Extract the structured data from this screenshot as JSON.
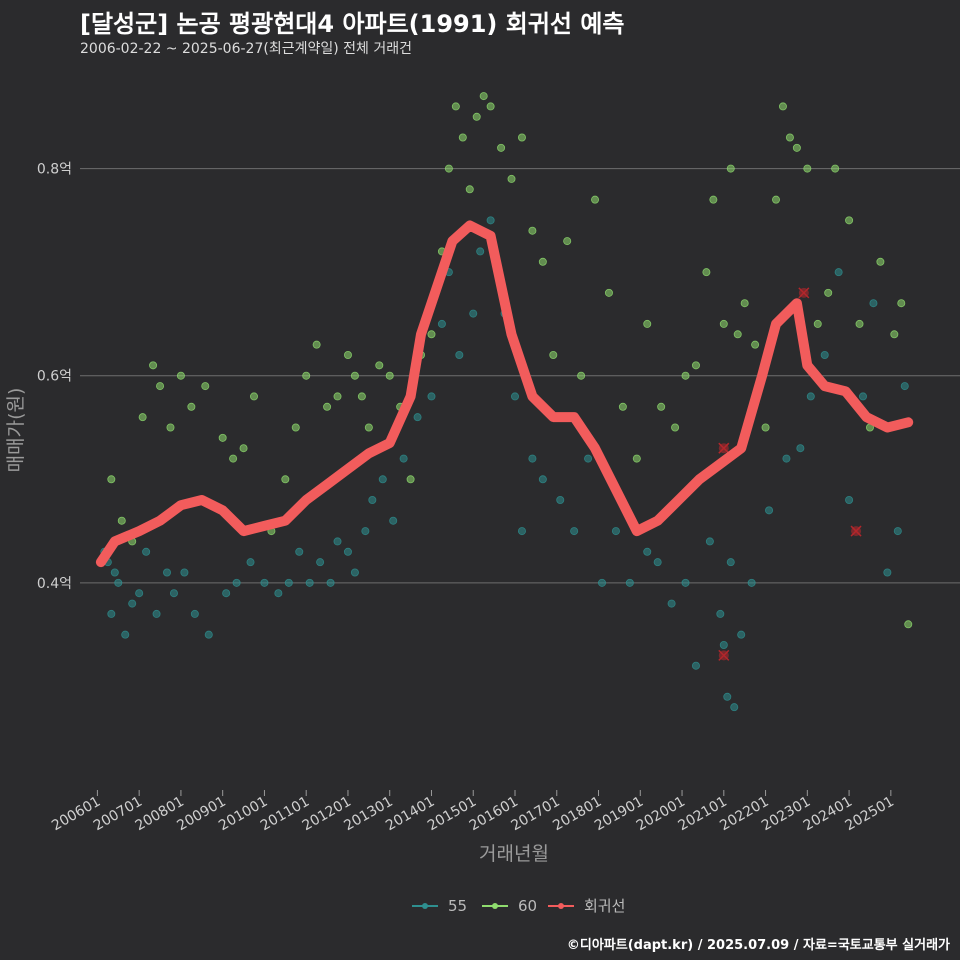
{
  "title": "[달성군] 논공 평광현대4 아파트(1991) 회귀선 예측",
  "subtitle": "2006-02-22 ~ 2025-06-27(최근계약일) 전체 거래건",
  "footer": "©디아파트(dapt.kr) / 2025.07.09 / 자료=국토교통부 실거래가",
  "chart_data": {
    "type": "scatter",
    "xlabel": "거래년월",
    "ylabel": "매매가(원)",
    "x_ticks": [
      "200601",
      "200701",
      "200801",
      "200901",
      "201001",
      "201101",
      "201201",
      "201301",
      "201401",
      "201501",
      "201601",
      "201701",
      "201801",
      "201901",
      "202001",
      "202101",
      "202201",
      "202301",
      "202401",
      "202501"
    ],
    "y_ticks": [
      {
        "value": 0.4,
        "label": "0.4억"
      },
      {
        "value": 0.6,
        "label": "0.6억"
      },
      {
        "value": 0.8,
        "label": "0.8억"
      }
    ],
    "xlim": [
      "2005-08",
      "2026-06"
    ],
    "ylim": [
      0.2,
      0.9
    ],
    "grid": true,
    "legend_position": "bottom",
    "colors": {
      "s55": "#2e8f8f",
      "s60": "#8fdc6e",
      "regression": "#f25c5c",
      "outlier": "#b3262b"
    },
    "legend": [
      "55",
      "60",
      "회귀선"
    ],
    "series": [
      {
        "name": "55",
        "points": [
          [
            "2006-03",
            0.43
          ],
          [
            "2006-04",
            0.42
          ],
          [
            "2006-05",
            0.37
          ],
          [
            "2006-06",
            0.41
          ],
          [
            "2006-07",
            0.4
          ],
          [
            "2006-09",
            0.35
          ],
          [
            "2006-11",
            0.38
          ],
          [
            "2007-01",
            0.39
          ],
          [
            "2007-03",
            0.43
          ],
          [
            "2007-06",
            0.37
          ],
          [
            "2007-09",
            0.41
          ],
          [
            "2007-11",
            0.39
          ],
          [
            "2008-02",
            0.41
          ],
          [
            "2008-05",
            0.37
          ],
          [
            "2008-09",
            0.35
          ],
          [
            "2009-02",
            0.39
          ],
          [
            "2009-05",
            0.4
          ],
          [
            "2009-09",
            0.42
          ],
          [
            "2010-01",
            0.4
          ],
          [
            "2010-05",
            0.39
          ],
          [
            "2010-08",
            0.4
          ],
          [
            "2010-11",
            0.43
          ],
          [
            "2011-02",
            0.4
          ],
          [
            "2011-05",
            0.42
          ],
          [
            "2011-08",
            0.4
          ],
          [
            "2011-10",
            0.44
          ],
          [
            "2012-01",
            0.43
          ],
          [
            "2012-03",
            0.41
          ],
          [
            "2012-06",
            0.45
          ],
          [
            "2012-08",
            0.48
          ],
          [
            "2012-11",
            0.5
          ],
          [
            "2013-02",
            0.46
          ],
          [
            "2013-05",
            0.52
          ],
          [
            "2013-09",
            0.56
          ],
          [
            "2014-01",
            0.58
          ],
          [
            "2014-04",
            0.65
          ],
          [
            "2014-06",
            0.7
          ],
          [
            "2014-09",
            0.62
          ],
          [
            "2015-01",
            0.66
          ],
          [
            "2015-03",
            0.72
          ],
          [
            "2015-06",
            0.75
          ],
          [
            "2015-10",
            0.66
          ],
          [
            "2016-01",
            0.58
          ],
          [
            "2016-03",
            0.45
          ],
          [
            "2016-06",
            0.52
          ],
          [
            "2016-09",
            0.5
          ],
          [
            "2017-02",
            0.48
          ],
          [
            "2017-06",
            0.45
          ],
          [
            "2017-10",
            0.52
          ],
          [
            "2018-02",
            0.4
          ],
          [
            "2018-06",
            0.45
          ],
          [
            "2018-10",
            0.4
          ],
          [
            "2019-03",
            0.43
          ],
          [
            "2019-06",
            0.42
          ],
          [
            "2019-10",
            0.38
          ],
          [
            "2020-02",
            0.4
          ],
          [
            "2020-05",
            0.32
          ],
          [
            "2020-09",
            0.44
          ],
          [
            "2020-12",
            0.37
          ],
          [
            "2021-01",
            0.34
          ],
          [
            "2021-02",
            0.29
          ],
          [
            "2021-03",
            0.42
          ],
          [
            "2021-04",
            0.28
          ],
          [
            "2021-06",
            0.35
          ],
          [
            "2021-09",
            0.4
          ],
          [
            "2022-02",
            0.47
          ],
          [
            "2022-07",
            0.52
          ],
          [
            "2022-11",
            0.53
          ],
          [
            "2023-02",
            0.58
          ],
          [
            "2023-06",
            0.62
          ],
          [
            "2023-10",
            0.7
          ],
          [
            "2024-01",
            0.48
          ],
          [
            "2024-05",
            0.58
          ],
          [
            "2024-08",
            0.67
          ],
          [
            "2024-12",
            0.41
          ],
          [
            "2025-03",
            0.45
          ],
          [
            "2025-05",
            0.59
          ]
        ]
      },
      {
        "name": "60",
        "points": [
          [
            "2006-05",
            0.5
          ],
          [
            "2006-08",
            0.46
          ],
          [
            "2006-11",
            0.44
          ],
          [
            "2007-02",
            0.56
          ],
          [
            "2007-05",
            0.61
          ],
          [
            "2007-07",
            0.59
          ],
          [
            "2007-10",
            0.55
          ],
          [
            "2008-01",
            0.6
          ],
          [
            "2008-04",
            0.57
          ],
          [
            "2008-08",
            0.59
          ],
          [
            "2009-01",
            0.54
          ],
          [
            "2009-04",
            0.52
          ],
          [
            "2009-07",
            0.53
          ],
          [
            "2009-10",
            0.58
          ],
          [
            "2010-03",
            0.45
          ],
          [
            "2010-07",
            0.5
          ],
          [
            "2010-10",
            0.55
          ],
          [
            "2011-01",
            0.6
          ],
          [
            "2011-04",
            0.63
          ],
          [
            "2011-07",
            0.57
          ],
          [
            "2011-10",
            0.58
          ],
          [
            "2012-01",
            0.62
          ],
          [
            "2012-03",
            0.6
          ],
          [
            "2012-05",
            0.58
          ],
          [
            "2012-07",
            0.55
          ],
          [
            "2012-10",
            0.61
          ],
          [
            "2013-01",
            0.6
          ],
          [
            "2013-04",
            0.57
          ],
          [
            "2013-07",
            0.5
          ],
          [
            "2013-10",
            0.62
          ],
          [
            "2014-01",
            0.64
          ],
          [
            "2014-04",
            0.72
          ],
          [
            "2014-06",
            0.8
          ],
          [
            "2014-08",
            0.86
          ],
          [
            "2014-10",
            0.83
          ],
          [
            "2014-12",
            0.78
          ],
          [
            "2015-02",
            0.85
          ],
          [
            "2015-04",
            0.87
          ],
          [
            "2015-06",
            0.86
          ],
          [
            "2015-09",
            0.82
          ],
          [
            "2015-12",
            0.79
          ],
          [
            "2016-03",
            0.83
          ],
          [
            "2016-06",
            0.74
          ],
          [
            "2016-09",
            0.71
          ],
          [
            "2016-12",
            0.62
          ],
          [
            "2017-04",
            0.73
          ],
          [
            "2017-08",
            0.6
          ],
          [
            "2017-12",
            0.77
          ],
          [
            "2018-04",
            0.68
          ],
          [
            "2018-08",
            0.57
          ],
          [
            "2018-12",
            0.52
          ],
          [
            "2019-03",
            0.65
          ],
          [
            "2019-07",
            0.57
          ],
          [
            "2019-11",
            0.55
          ],
          [
            "2020-02",
            0.6
          ],
          [
            "2020-05",
            0.61
          ],
          [
            "2020-08",
            0.7
          ],
          [
            "2020-10",
            0.77
          ],
          [
            "2021-01",
            0.65
          ],
          [
            "2021-03",
            0.8
          ],
          [
            "2021-05",
            0.64
          ],
          [
            "2021-07",
            0.67
          ],
          [
            "2021-10",
            0.63
          ],
          [
            "2022-01",
            0.55
          ],
          [
            "2022-04",
            0.77
          ],
          [
            "2022-06",
            0.86
          ],
          [
            "2022-08",
            0.83
          ],
          [
            "2022-10",
            0.82
          ],
          [
            "2023-01",
            0.8
          ],
          [
            "2023-04",
            0.65
          ],
          [
            "2023-07",
            0.68
          ],
          [
            "2023-09",
            0.8
          ],
          [
            "2024-01",
            0.75
          ],
          [
            "2024-04",
            0.65
          ],
          [
            "2024-07",
            0.55
          ],
          [
            "2024-10",
            0.71
          ],
          [
            "2025-02",
            0.64
          ],
          [
            "2025-04",
            0.67
          ],
          [
            "2025-06",
            0.36
          ]
        ]
      }
    ],
    "regression": [
      [
        "2006-02",
        0.42
      ],
      [
        "2006-06",
        0.44
      ],
      [
        "2007-01",
        0.45
      ],
      [
        "2007-07",
        0.46
      ],
      [
        "2008-01",
        0.475
      ],
      [
        "2008-07",
        0.48
      ],
      [
        "2009-01",
        0.47
      ],
      [
        "2009-07",
        0.45
      ],
      [
        "2010-01",
        0.455
      ],
      [
        "2010-07",
        0.46
      ],
      [
        "2011-01",
        0.48
      ],
      [
        "2011-07",
        0.495
      ],
      [
        "2012-01",
        0.51
      ],
      [
        "2012-07",
        0.525
      ],
      [
        "2013-01",
        0.535
      ],
      [
        "2013-07",
        0.58
      ],
      [
        "2013-10",
        0.64
      ],
      [
        "2014-01",
        0.67
      ],
      [
        "2014-07",
        0.73
      ],
      [
        "2014-12",
        0.745
      ],
      [
        "2015-06",
        0.735
      ],
      [
        "2015-12",
        0.64
      ],
      [
        "2016-06",
        0.58
      ],
      [
        "2016-12",
        0.56
      ],
      [
        "2017-06",
        0.56
      ],
      [
        "2017-12",
        0.53
      ],
      [
        "2018-06",
        0.49
      ],
      [
        "2018-12",
        0.45
      ],
      [
        "2019-06",
        0.46
      ],
      [
        "2019-12",
        0.48
      ],
      [
        "2020-06",
        0.5
      ],
      [
        "2020-12",
        0.515
      ],
      [
        "2021-06",
        0.53
      ],
      [
        "2021-12",
        0.6
      ],
      [
        "2022-04",
        0.65
      ],
      [
        "2022-10",
        0.67
      ],
      [
        "2023-01",
        0.61
      ],
      [
        "2023-06",
        0.59
      ],
      [
        "2023-12",
        0.585
      ],
      [
        "2024-06",
        0.56
      ],
      [
        "2024-12",
        0.55
      ],
      [
        "2025-06",
        0.555
      ]
    ],
    "outliers": [
      [
        "2021-01",
        0.53
      ],
      [
        "2021-01",
        0.33
      ],
      [
        "2022-12",
        0.68
      ],
      [
        "2024-03",
        0.45
      ]
    ]
  }
}
